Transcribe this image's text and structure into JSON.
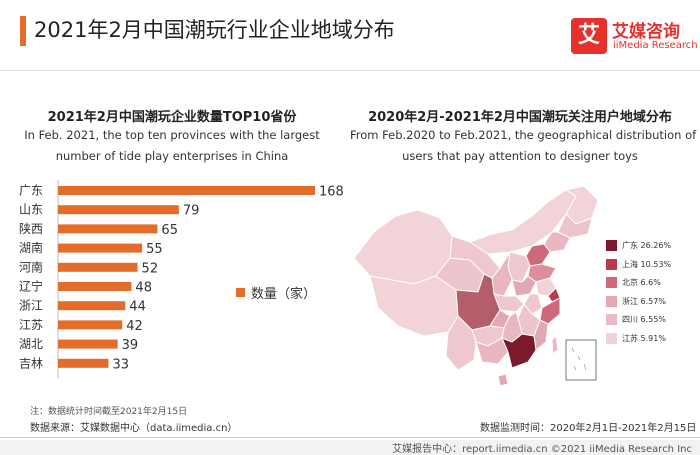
{
  "header": {
    "title": "2021年2月中国潮玩行业企业地域分布",
    "logo_mark": "艾",
    "logo_cn": "艾媒咨询",
    "logo_en": "iiMedia Research"
  },
  "left_panel": {
    "title": "2021年2月中国潮玩企业数量TOP10省份",
    "subtitle_line1": "In Feb. 2021, the top ten provinces with the largest",
    "subtitle_line2": "number of tide play enterprises in China",
    "note": "注：数据统计时间截至2021年2月15日",
    "source": "数据来源：艾媒数据中心（data.iimedia.cn）"
  },
  "right_panel": {
    "title": "2020年2月-2021年2月中国潮玩关注用户地域分布",
    "subtitle_line1": "From Feb.2020 to Feb.2021,  the geographical distribution of",
    "subtitle_line2": "users that pay attention to designer toys",
    "monitor_period": "数据监测时间：2020年2月1日-2021年2月15日"
  },
  "footer": {
    "text": "艾媒报告中心：report.iimedia.cn  ©2021  iiMedia Research  Inc"
  },
  "chart_data": [
    {
      "type": "bar",
      "orientation": "horizontal",
      "categories": [
        "广东",
        "山东",
        "陕西",
        "湖南",
        "河南",
        "辽宁",
        "浙江",
        "江苏",
        "湖北",
        "吉林"
      ],
      "series": [
        {
          "name": "数量（家）",
          "values": [
            168,
            79,
            65,
            55,
            52,
            48,
            44,
            42,
            39,
            33
          ]
        }
      ],
      "xlim": [
        0,
        168
      ],
      "grid": false,
      "legend": "right",
      "color": "#e46c2b"
    },
    {
      "type": "map",
      "regions": [
        "广东",
        "上海",
        "北京",
        "浙江",
        "四川",
        "江苏"
      ],
      "values": [
        "26.26%",
        "10.53%",
        "6.6%",
        "6.57%",
        "6.55%",
        "5.91%"
      ],
      "colors": [
        "#7a1a2a",
        "#b93a4a",
        "#cf6878",
        "#e6a8b2",
        "#ecbcc4",
        "#f2d2d8"
      ],
      "legend": "right"
    }
  ]
}
